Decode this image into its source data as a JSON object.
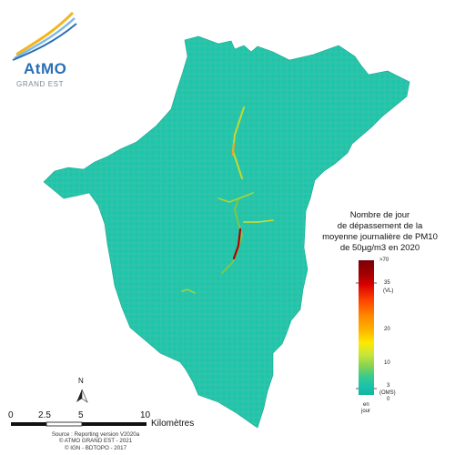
{
  "logo": {
    "mark": "AtMO",
    "subtitle": "GRAND EST"
  },
  "legend": {
    "title_lines": [
      "Nombre de jour",
      "de dépassement de la",
      "moyenne journalière de PM10",
      "de 50µg/m3 en 2020"
    ],
    "ticks": [
      ">70",
      "35",
      "(VL)",
      "20",
      "10",
      "3",
      "(OMS)",
      "0"
    ],
    "unit_lines": [
      "en",
      "jour"
    ],
    "colors": {
      "low": "#1fc5a9",
      "mid": "#ffe800",
      "high": "#7a0008"
    }
  },
  "map": {
    "area_color": "#1fc5a9",
    "road_color": "#9fb8b0"
  },
  "north": {
    "label": "N"
  },
  "scale": {
    "ticks": [
      "0",
      "2.5",
      "5",
      "10"
    ],
    "unit": "Kilomètres"
  },
  "source": {
    "lines": [
      "Source : Reporting version V2020a",
      "© ATMO GRAND EST - 2021",
      "© IGN - BDTOPO - 2017"
    ]
  }
}
